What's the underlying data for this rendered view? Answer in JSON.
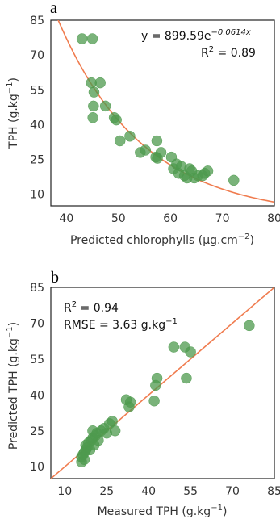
{
  "chart_data": [
    {
      "type": "scatter",
      "panel_label": "a",
      "xlabel": "Predicted chlorophylls (µg.cm",
      "xlabel_exp": "−2",
      "xlabel_end": ")",
      "ylabel": "TPH (g.kg",
      "ylabel_exp": "−1",
      "ylabel_end": ")",
      "xlim": [
        37,
        80
      ],
      "ylim": [
        5,
        85
      ],
      "xticks": [
        40,
        50,
        60,
        70,
        80
      ],
      "yticks": [
        10,
        25,
        40,
        55,
        70,
        85
      ],
      "grid": false,
      "equation_main": "y = 899.59e",
      "equation_exp": "−0.0614x",
      "r2_label": "R",
      "r2_exp": "2",
      "r2_value": " = 0.89",
      "fit": {
        "kind": "exponential",
        "a": 899.59,
        "b": -0.0614
      },
      "fit_color": "#f07c4f",
      "point_color": "#4e9a4e",
      "points": [
        [
          43,
          77
        ],
        [
          45,
          77
        ],
        [
          44.8,
          58
        ],
        [
          46.5,
          58
        ],
        [
          45.3,
          54
        ],
        [
          45.2,
          48
        ],
        [
          45.1,
          43
        ],
        [
          47.5,
          48
        ],
        [
          49.2,
          43
        ],
        [
          49.6,
          42
        ],
        [
          50.3,
          33
        ],
        [
          52.2,
          35
        ],
        [
          54.2,
          28
        ],
        [
          55.2,
          29
        ],
        [
          57.4,
          33
        ],
        [
          57.2,
          26
        ],
        [
          57.5,
          25.5
        ],
        [
          58.2,
          28
        ],
        [
          60.2,
          26
        ],
        [
          60.6,
          21
        ],
        [
          61.2,
          23
        ],
        [
          61.6,
          19
        ],
        [
          62.1,
          22
        ],
        [
          62.7,
          18
        ],
        [
          63.2,
          17
        ],
        [
          63.7,
          21
        ],
        [
          64.1,
          20
        ],
        [
          64.6,
          17
        ],
        [
          65.3,
          18
        ],
        [
          66.2,
          18
        ],
        [
          66.6,
          19
        ],
        [
          67.2,
          20
        ],
        [
          72.2,
          16
        ]
      ]
    },
    {
      "type": "scatter",
      "panel_label": "b",
      "xlabel": "Measured TPH (g.kg",
      "xlabel_exp": "−1",
      "xlabel_end": ")",
      "ylabel": "Predicted TPH (g.kg",
      "ylabel_exp": "−1",
      "ylabel_end": ")",
      "xlim": [
        5,
        85
      ],
      "ylim": [
        5,
        85
      ],
      "xticks": [
        10,
        25,
        40,
        55,
        70,
        85
      ],
      "yticks": [
        10,
        25,
        40,
        55,
        70,
        85
      ],
      "grid": false,
      "r2_label": "R",
      "r2_exp": "2",
      "r2_value": " = 0.94",
      "rmse_main": "RMSE = 3.63 g.kg",
      "rmse_exp": "−1",
      "fit": {
        "kind": "identity"
      },
      "fit_color": "#f07c4f",
      "point_color": "#4e9a4e",
      "points": [
        [
          16,
          12
        ],
        [
          16,
          14
        ],
        [
          16.5,
          15
        ],
        [
          17,
          13
        ],
        [
          17,
          16
        ],
        [
          17.5,
          17
        ],
        [
          17.5,
          19
        ],
        [
          18,
          18
        ],
        [
          18.5,
          20
        ],
        [
          19,
          17
        ],
        [
          19.5,
          21
        ],
        [
          20,
          22
        ],
        [
          20,
          25
        ],
        [
          20.5,
          19
        ],
        [
          21,
          23
        ],
        [
          21.5,
          24
        ],
        [
          22,
          21
        ],
        [
          23,
          25
        ],
        [
          24,
          26
        ],
        [
          25,
          24
        ],
        [
          26,
          28
        ],
        [
          27,
          29
        ],
        [
          28,
          25
        ],
        [
          32,
          38
        ],
        [
          33,
          35
        ],
        [
          33.5,
          37
        ],
        [
          42,
          37.5
        ],
        [
          42.5,
          44
        ],
        [
          43,
          47
        ],
        [
          49,
          60
        ],
        [
          53,
          60
        ],
        [
          53.5,
          47
        ],
        [
          55,
          58
        ],
        [
          76,
          69
        ]
      ]
    }
  ]
}
